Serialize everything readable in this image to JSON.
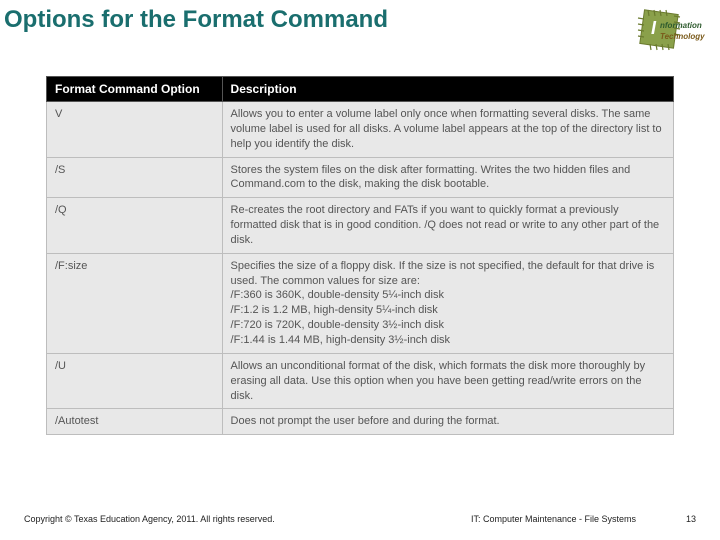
{
  "title": "Options for the Format Command",
  "logo": {
    "text_top": "nformation",
    "text_bottom": "Technology",
    "chip_fill": "#8aa04a",
    "chip_stroke": "#6a7a2e",
    "text_color_top": "#2d5a2d",
    "text_color_bottom": "#7a5a1a"
  },
  "table": {
    "header_bg": "#000000",
    "header_fg": "#ffffff",
    "cell_bg": "#e8e8e8",
    "cell_fg": "#555555",
    "border": "#bdbdbd",
    "columns": [
      "Format Command Option",
      "Description"
    ],
    "rows": [
      [
        "V",
        "Allows you to enter a volume label only once when formatting several disks. The same volume label is used for all disks. A volume label appears at the top of the directory list to help you identify the disk."
      ],
      [
        "/S",
        "Stores the system files on the disk after formatting. Writes the two hidden files and Command.com to the disk, making the disk bootable."
      ],
      [
        "/Q",
        "Re-creates the root directory and FATs if you want to quickly format a previously formatted disk that is in good condition. /Q does not read or write to any other part of the disk."
      ],
      [
        "/F:size",
        "Specifies the size of a floppy disk. If the size is not specified, the default for that drive is used. The common values for size are:\n/F:360 is 360K, double-density 5¼-inch disk\n/F:1.2 is 1.2 MB, high-density 5¼-inch disk\n/F:720 is 720K, double-density 3½-inch disk\n/F:1.44 is 1.44 MB, high-density 3½-inch disk"
      ],
      [
        "/U",
        "Allows an unconditional format of the disk, which formats the disk more thoroughly by erasing all data. Use this option when you have been getting read/write errors on the disk."
      ],
      [
        "/Autotest",
        "Does not prompt the user before and during the format."
      ]
    ]
  },
  "footer": {
    "copyright": "Copyright © Texas Education Agency, 2011. All rights reserved.",
    "course": "IT: Computer Maintenance - File Systems",
    "page": "13"
  }
}
